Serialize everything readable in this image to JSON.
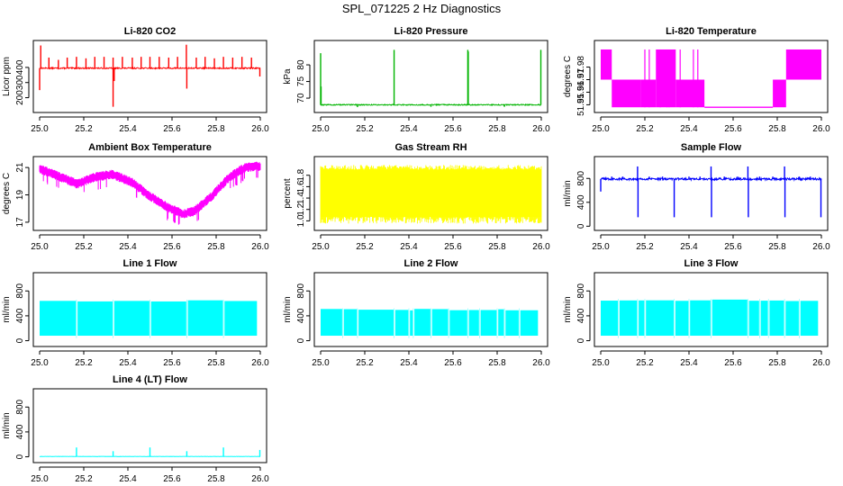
{
  "figure_title": "SPL_071225  2 Hz Diagnostics",
  "chart_data": [
    {
      "type": "line",
      "title": "Li-820 CO2",
      "color": "#ff0000",
      "xlabel": "",
      "ylabel": "Licor ppm",
      "xlim": [
        25.0,
        26.0
      ],
      "ylim": [
        120,
        560
      ],
      "xticks": [
        "25.0",
        "25.2",
        "25.4",
        "25.6",
        "25.8",
        "26.0"
      ],
      "yticks": [
        {
          "v": 200,
          "label": "200"
        },
        {
          "v": 300,
          "label": "300"
        },
        {
          "v": 400,
          "label": "400"
        }
      ],
      "series": [
        {
          "name": "Li-820 CO2",
          "style": "spiky",
          "base": 395,
          "noise": 4,
          "spikes": [
            [
              25.0,
              250
            ],
            [
              25.005,
              545
            ],
            [
              25.042,
              465
            ],
            [
              25.085,
              450
            ],
            [
              25.125,
              465
            ],
            [
              25.167,
              470
            ],
            [
              25.21,
              460
            ],
            [
              25.25,
              470
            ],
            [
              25.292,
              470
            ],
            [
              25.333,
              465
            ],
            [
              25.333,
              140
            ],
            [
              25.338,
              310
            ],
            [
              25.375,
              470
            ],
            [
              25.42,
              465
            ],
            [
              25.46,
              470
            ],
            [
              25.5,
              470
            ],
            [
              25.542,
              470
            ],
            [
              25.585,
              465
            ],
            [
              25.625,
              470
            ],
            [
              25.665,
              550
            ],
            [
              25.667,
              260
            ],
            [
              25.71,
              465
            ],
            [
              25.75,
              470
            ],
            [
              25.792,
              460
            ],
            [
              25.833,
              470
            ],
            [
              25.875,
              465
            ],
            [
              25.917,
              470
            ],
            [
              25.96,
              465
            ],
            [
              25.998,
              340
            ]
          ]
        }
      ]
    },
    {
      "type": "line",
      "title": "Li-820 Pressure",
      "color": "#00b400",
      "xlabel": "",
      "ylabel": "kPa",
      "xlim": [
        25.0,
        26.0
      ],
      "ylim": [
        66.5,
        86.5
      ],
      "xticks": [
        "25.0",
        "25.2",
        "25.4",
        "25.6",
        "25.8",
        "26.0"
      ],
      "yticks": [
        {
          "v": 70,
          "label": "70"
        },
        {
          "v": 75,
          "label": "75"
        },
        {
          "v": 80,
          "label": "80"
        }
      ],
      "series": [
        {
          "name": "Li-820 Pressure",
          "style": "spiky",
          "base": 68.0,
          "noise": 0.15,
          "spikes": [
            [
              25.0,
              83.5
            ],
            [
              25.002,
              73.5
            ],
            [
              25.333,
              84.5
            ],
            [
              25.667,
              84.5
            ],
            [
              25.669,
              84.0
            ],
            [
              25.998,
              84.5
            ],
            [
              25.167,
              67.3
            ],
            [
              25.5,
              67.4
            ],
            [
              25.833,
              67.4
            ]
          ]
        }
      ]
    },
    {
      "type": "line",
      "title": "Li-820 Temperature",
      "color": "#ff00ff",
      "xlabel": "",
      "ylabel": "degrees C",
      "xlim": [
        25.0,
        26.0
      ],
      "ylim": [
        51.946,
        51.999
      ],
      "xticks": [
        "25.0",
        "25.2",
        "25.4",
        "25.6",
        "25.8",
        "26.0"
      ],
      "yticks": [
        {
          "v": 51.95,
          "label": "51.95"
        },
        {
          "v": 51.96,
          "label": "51.96"
        },
        {
          "v": 51.97,
          "label": "51.97"
        },
        {
          "v": 51.98,
          "label": "51.98"
        }
      ],
      "series": [
        {
          "name": "Li-820 Temperature",
          "style": "quantized",
          "levels": [
            51.948,
            51.97,
            51.994
          ],
          "regimes": [
            [
              25.0,
              25.05,
              2,
              1
            ],
            [
              25.05,
              25.18,
              1,
              0
            ],
            [
              25.18,
              25.25,
              1,
              0
            ],
            [
              25.25,
              25.34,
              0,
              2
            ],
            [
              25.34,
              25.47,
              0,
              1
            ],
            [
              25.47,
              25.78,
              0,
              0
            ],
            [
              25.78,
              25.84,
              0,
              1
            ],
            [
              25.84,
              26.0,
              1,
              2
            ]
          ]
        }
      ]
    },
    {
      "type": "line",
      "title": "Ambient Box Temperature",
      "color": "#ff00ff",
      "xlabel": "",
      "ylabel": "degrees C",
      "xlim": [
        25.0,
        26.0
      ],
      "ylim": [
        16.6,
        21.6
      ],
      "xticks": [
        "25.0",
        "25.2",
        "25.4",
        "25.6",
        "25.8",
        "26.0"
      ],
      "yticks": [
        {
          "v": 17,
          "label": "17"
        },
        {
          "v": 19,
          "label": "19"
        },
        {
          "v": 21,
          "label": "21"
        }
      ],
      "series": [
        {
          "name": "Ambient Box Temperature",
          "style": "band",
          "points": [
            [
              25.0,
              20.9
            ],
            [
              25.08,
              20.4
            ],
            [
              25.17,
              19.8
            ],
            [
              25.25,
              20.3
            ],
            [
              25.33,
              20.5
            ],
            [
              25.42,
              19.9
            ],
            [
              25.5,
              18.9
            ],
            [
              25.58,
              18.1
            ],
            [
              25.65,
              17.6
            ],
            [
              25.7,
              17.8
            ],
            [
              25.78,
              18.9
            ],
            [
              25.86,
              20.3
            ],
            [
              25.93,
              21.0
            ],
            [
              26.0,
              21.1
            ]
          ],
          "amp": 0.35
        }
      ]
    },
    {
      "type": "line",
      "title": "Gas Stream RH",
      "color": "#ffff00",
      "xlabel": "",
      "ylabel": "percent",
      "xlim": [
        25.0,
        26.0
      ],
      "ylim": [
        0.88,
        2.08
      ],
      "xticks": [
        "25.0",
        "25.2",
        "25.4",
        "25.6",
        "25.8",
        "26.0"
      ],
      "yticks": [
        {
          "v": 1.0,
          "label": "1.0"
        },
        {
          "v": 1.2,
          "label": "1.2"
        },
        {
          "v": 1.4,
          "label": "1.4"
        },
        {
          "v": 1.6,
          "label": "1.6"
        },
        {
          "v": 1.8,
          "label": "1.8"
        }
      ],
      "series": [
        {
          "name": "Gas Stream RH",
          "style": "noiseband",
          "lo": 1.07,
          "hi": 1.9,
          "outlo": 0.95,
          "outhi": 1.98
        }
      ]
    },
    {
      "type": "line",
      "title": "Sample Flow",
      "color": "#0000ff",
      "xlabel": "",
      "ylabel": "ml/min",
      "xlim": [
        25.0,
        26.0
      ],
      "ylim": [
        -25,
        1120
      ],
      "xticks": [
        "25.0",
        "25.2",
        "25.4",
        "25.6",
        "25.8",
        "26.0"
      ],
      "yticks": [
        {
          "v": 0,
          "label": "0"
        },
        {
          "v": 400,
          "label": "400"
        },
        {
          "v": 800,
          "label": "800"
        }
      ],
      "series": [
        {
          "name": "Sample Flow",
          "style": "spiky",
          "base": 790,
          "noise": 18,
          "spikes": [
            [
              25.0,
              580
            ],
            [
              25.167,
              1000
            ],
            [
              25.169,
              150
            ],
            [
              25.333,
              150
            ],
            [
              25.5,
              1000
            ],
            [
              25.502,
              150
            ],
            [
              25.667,
              1000
            ],
            [
              25.669,
              150
            ],
            [
              25.833,
              1000
            ],
            [
              25.835,
              150
            ],
            [
              25.998,
              150
            ],
            [
              25.05,
              830
            ],
            [
              25.1,
              830
            ],
            [
              25.22,
              830
            ],
            [
              25.28,
              830
            ],
            [
              25.4,
              830
            ],
            [
              25.45,
              830
            ],
            [
              25.56,
              830
            ],
            [
              25.62,
              830
            ],
            [
              25.72,
              830
            ],
            [
              25.78,
              830
            ],
            [
              25.9,
              830
            ],
            [
              25.95,
              830
            ]
          ]
        }
      ]
    },
    {
      "type": "line",
      "title": "Line 1 Flow",
      "color": "#00ffff",
      "xlabel": "",
      "ylabel": "ml/min",
      "xlim": [
        25.0,
        26.0
      ],
      "ylim": [
        -50,
        1050
      ],
      "xticks": [
        "25.0",
        "25.2",
        "25.4",
        "25.6",
        "25.8",
        "26.0"
      ],
      "yticks": [
        {
          "v": 0,
          "label": "0"
        },
        {
          "v": 400,
          "label": "400"
        },
        {
          "v": 800,
          "label": "800"
        }
      ],
      "series": [
        {
          "name": "Line 1 Flow",
          "style": "block",
          "lo": 80,
          "hi": 640,
          "start": 25.0,
          "end": 25.985,
          "gaps": [
            25.167,
            25.333,
            25.5,
            25.667,
            25.833
          ]
        }
      ]
    },
    {
      "type": "line",
      "title": "Line 2 Flow",
      "color": "#00ffff",
      "xlabel": "",
      "ylabel": "ml/min",
      "xlim": [
        25.0,
        26.0
      ],
      "ylim": [
        -50,
        1050
      ],
      "xticks": [
        "25.0",
        "25.2",
        "25.4",
        "25.6",
        "25.8",
        "26.0"
      ],
      "yticks": [
        {
          "v": 0,
          "label": "0"
        },
        {
          "v": 400,
          "label": "400"
        },
        {
          "v": 800,
          "label": "800"
        }
      ],
      "series": [
        {
          "name": "Line 2 Flow",
          "style": "block",
          "lo": 80,
          "hi": 500,
          "start": 25.0,
          "end": 25.985,
          "gaps": [
            25.1,
            25.167,
            25.333,
            25.4,
            25.42,
            25.5,
            25.58,
            25.667,
            25.72,
            25.8,
            25.833,
            25.9
          ]
        }
      ]
    },
    {
      "type": "line",
      "title": "Line 3 Flow",
      "color": "#00ffff",
      "xlabel": "",
      "ylabel": "ml/min",
      "xlim": [
        25.0,
        26.0
      ],
      "ylim": [
        -50,
        1050
      ],
      "xticks": [
        "25.0",
        "25.2",
        "25.4",
        "25.6",
        "25.8",
        "26.0"
      ],
      "yticks": [
        {
          "v": 0,
          "label": "0"
        },
        {
          "v": 400,
          "label": "400"
        },
        {
          "v": 800,
          "label": "800"
        }
      ],
      "series": [
        {
          "name": "Line 3 Flow",
          "style": "block",
          "lo": 80,
          "hi": 650,
          "start": 25.0,
          "end": 25.985,
          "gaps": [
            25.08,
            25.167,
            25.2,
            25.333,
            25.4,
            25.5,
            25.667,
            25.72,
            25.76,
            25.833,
            25.9
          ]
        }
      ]
    },
    {
      "type": "line",
      "title": "Line 4 (LT) Flow",
      "color": "#00ffff",
      "xlabel": "",
      "ylabel": "ml/min",
      "xlim": [
        25.0,
        26.0
      ],
      "ylim": [
        -50,
        1050
      ],
      "xticks": [
        "25.0",
        "25.2",
        "25.4",
        "25.6",
        "25.8",
        "26.0"
      ],
      "yticks": [
        {
          "v": 0,
          "label": "0"
        },
        {
          "v": 400,
          "label": "400"
        },
        {
          "v": 800,
          "label": "800"
        }
      ],
      "series": [
        {
          "name": "Line 4 (LT) Flow",
          "style": "spiky",
          "base": 5,
          "noise": 2,
          "spikes": [
            [
              25.167,
              150
            ],
            [
              25.333,
              90
            ],
            [
              25.5,
              150
            ],
            [
              25.667,
              90
            ],
            [
              25.833,
              150
            ],
            [
              25.998,
              110
            ]
          ]
        }
      ]
    }
  ]
}
